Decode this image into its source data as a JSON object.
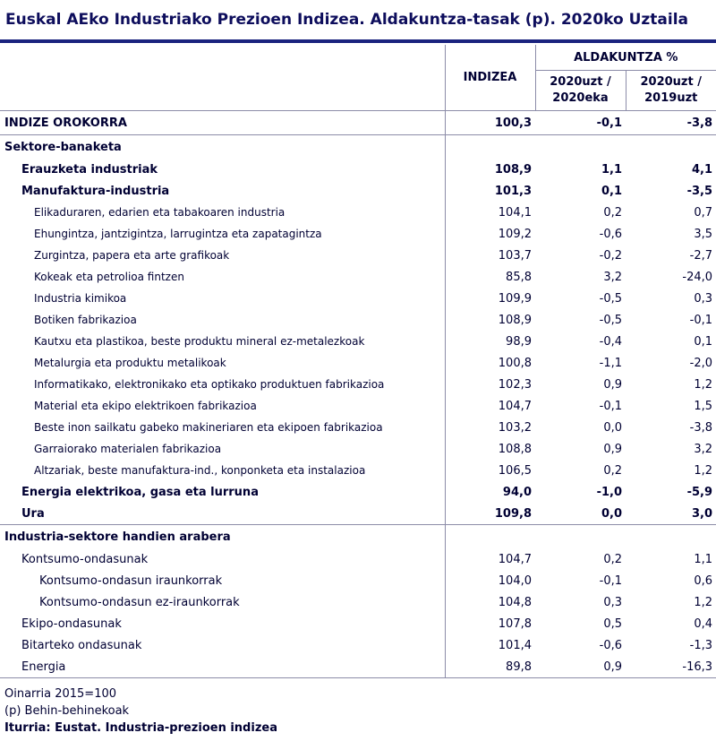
{
  "title": "Euskal AEko Industriako Prezioen Indizea. Aldakuntza-tasak (p). 2020ko Uztaila",
  "header": {
    "indizea": "INDIZEA",
    "aldakuntza": "ALDAKUNTZA %",
    "col2_line1": "2020uzt /",
    "col2_line2": "2020eka",
    "col3_line1": "2020uzt /",
    "col3_line2": "2019uzt"
  },
  "rows": [
    {
      "label": "INDIZE OROKORRA",
      "indizea": "100,3",
      "v1": "-0,1",
      "v2": "-3,8"
    },
    {
      "label": "Sektore-banaketa"
    },
    {
      "label": "Erauzketa industriak",
      "indizea": "108,9",
      "v1": "1,1",
      "v2": "4,1"
    },
    {
      "label": "Manufaktura-industria",
      "indizea": "101,3",
      "v1": "0,1",
      "v2": "-3,5"
    },
    {
      "label": "Elikaduraren, edarien eta tabakoaren industria",
      "indizea": "104,1",
      "v1": "0,2",
      "v2": "0,7"
    },
    {
      "label": "Ehungintza, jantzigintza, larrugintza eta zapatagintza",
      "indizea": "109,2",
      "v1": "-0,6",
      "v2": "3,5"
    },
    {
      "label": "Zurgintza, papera eta arte grafikoak",
      "indizea": "103,7",
      "v1": "-0,2",
      "v2": "-2,7"
    },
    {
      "label": "Kokeak eta petrolioa fintzen",
      "indizea": "85,8",
      "v1": "3,2",
      "v2": "-24,0"
    },
    {
      "label": "Industria kimikoa",
      "indizea": "109,9",
      "v1": "-0,5",
      "v2": "0,3"
    },
    {
      "label": "Botiken fabrikazioa",
      "indizea": "108,9",
      "v1": "-0,5",
      "v2": "-0,1"
    },
    {
      "label": "Kautxu eta plastikoa, beste produktu mineral ez-metalezkoak",
      "indizea": "98,9",
      "v1": "-0,4",
      "v2": "0,1"
    },
    {
      "label": "Metalurgia eta produktu metalikoak",
      "indizea": "100,8",
      "v1": "-1,1",
      "v2": "-2,0"
    },
    {
      "label": "Informatikako, elektronikako eta optikako produktuen fabrikazioa",
      "indizea": "102,3",
      "v1": "0,9",
      "v2": "1,2"
    },
    {
      "label": "Material eta ekipo elektrikoen fabrikazioa",
      "indizea": "104,7",
      "v1": "-0,1",
      "v2": "1,5"
    },
    {
      "label": "Beste inon sailkatu gabeko makineriaren eta ekipoen fabrikazioa",
      "indizea": "103,2",
      "v1": "0,0",
      "v2": "-3,8"
    },
    {
      "label": "Garraiorako materialen fabrikazioa",
      "indizea": "108,8",
      "v1": "0,9",
      "v2": "3,2"
    },
    {
      "label": "Altzariak, beste manufaktura-ind., konponketa eta instalazioa",
      "indizea": "106,5",
      "v1": "0,2",
      "v2": "1,2"
    },
    {
      "label": "Energia elektrikoa, gasa eta lurruna",
      "indizea": "94,0",
      "v1": "-1,0",
      "v2": "-5,9"
    },
    {
      "label": "Ura",
      "indizea": "109,8",
      "v1": "0,0",
      "v2": "3,0"
    },
    {
      "label": "Industria-sektore handien arabera"
    },
    {
      "label": "Kontsumo-ondasunak",
      "indizea": "104,7",
      "v1": "0,2",
      "v2": "1,1"
    },
    {
      "label": "Kontsumo-ondasun iraunkorrak",
      "indizea": "104,0",
      "v1": "-0,1",
      "v2": "0,6"
    },
    {
      "label": "Kontsumo-ondasun ez-iraunkorrak",
      "indizea": "104,8",
      "v1": "0,3",
      "v2": "1,2"
    },
    {
      "label": "Ekipo-ondasunak",
      "indizea": "107,8",
      "v1": "0,5",
      "v2": "0,4"
    },
    {
      "label": "Bitarteko ondasunak",
      "indizea": "101,4",
      "v1": "-0,6",
      "v2": "-1,3"
    },
    {
      "label": "Energia",
      "indizea": "89,8",
      "v1": "0,9",
      "v2": "-16,3"
    }
  ],
  "footer": {
    "base": "Oinarria 2015=100",
    "note": "(p) Behin-behinekoak",
    "source": "Iturria: Eustat. Industria-prezioen indizea"
  }
}
